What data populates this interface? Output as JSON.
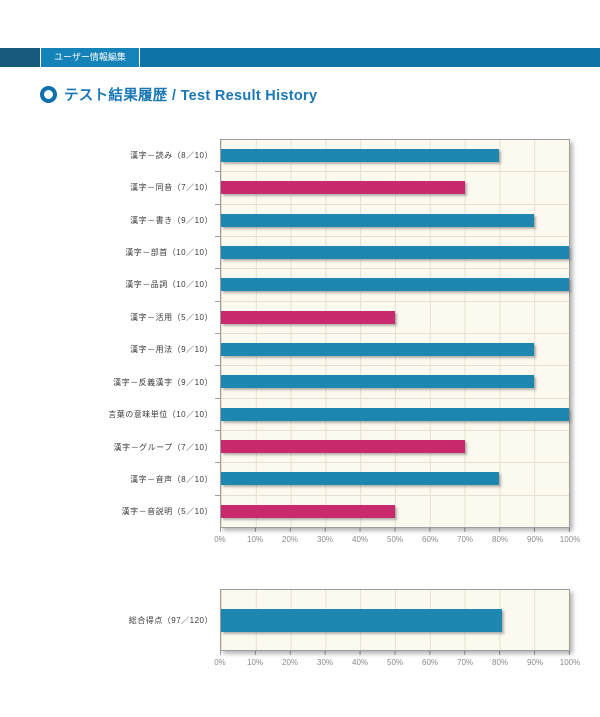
{
  "topbar": {
    "tab_label": "ユーザー情報編集"
  },
  "title": {
    "text": "テスト結果履歴 / Test Result History",
    "icon": "ring-icon"
  },
  "colors": {
    "topbar_left": "#175a7e",
    "topbar_tab": "#1583b8",
    "topbar_fill": "#0e74a6",
    "title_blue": "#1a79b5",
    "plot_background": "#fcf9ef",
    "grid_line": "#e4e1d3",
    "plot_border": "#9e9e9e",
    "bars": {
      "blue": "#1e87af",
      "pink": "#c9296d"
    }
  },
  "chart_data": [
    {
      "type": "bar",
      "orientation": "horizontal",
      "title": "",
      "xlabel": "",
      "ylabel": "",
      "xlim": [
        0,
        100
      ],
      "grid": true,
      "legend": null,
      "categories": [
        "漢字－読み（8／10）",
        "漢字－同音（7／10）",
        "漢字－書き（9／10）",
        "漢字－部首（10／10）",
        "漢字－品詞（10／10）",
        "漢字－活用（5／10）",
        "漢字－用法（9／10）",
        "漢字－反義漢字（9／10）",
        "言葉の意味単位（10／10）",
        "漢字－グループ（7／10）",
        "漢字－音声（8／10）",
        "漢字－音説明（5／10）"
      ],
      "values": [
        80,
        70,
        90,
        100,
        100,
        50,
        90,
        90,
        100,
        70,
        80,
        50
      ],
      "bar_colors": [
        "blue",
        "pink",
        "blue",
        "blue",
        "blue",
        "pink",
        "blue",
        "blue",
        "blue",
        "pink",
        "blue",
        "pink"
      ],
      "xticks": [
        "0%",
        "10%",
        "20%",
        "30%",
        "40%",
        "50%",
        "60%",
        "70%",
        "80%",
        "90%",
        "100%"
      ]
    },
    {
      "type": "bar",
      "orientation": "horizontal",
      "title": "",
      "xlabel": "",
      "ylabel": "",
      "xlim": [
        0,
        100
      ],
      "grid": true,
      "legend": null,
      "categories": [
        "総合得点（97／120）"
      ],
      "values": [
        80.8
      ],
      "bar_colors": [
        "blue"
      ],
      "xticks": [
        "0%",
        "10%",
        "20%",
        "30%",
        "40%",
        "50%",
        "60%",
        "70%",
        "80%",
        "90%",
        "100%"
      ]
    }
  ]
}
